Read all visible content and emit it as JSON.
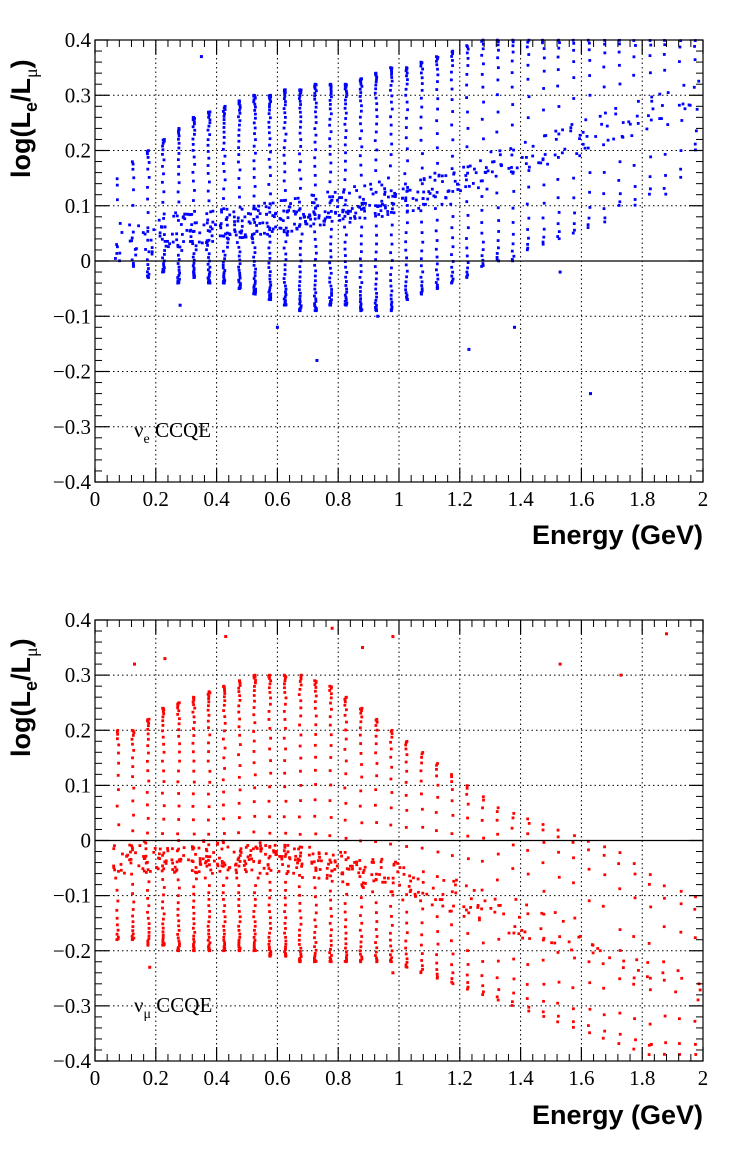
{
  "chart_data": [
    {
      "type": "scatter",
      "panel": "top",
      "xlabel": "Energy (GeV)",
      "ylabel": {
        "main": "log(L",
        "sub1": "e",
        "mid": "/L",
        "sub2": "μ",
        "end": ")"
      },
      "xlim": [
        0,
        2
      ],
      "ylim": [
        -0.4,
        0.4
      ],
      "grid": true,
      "xticks": [
        "0",
        "0.2",
        "0.4",
        "0.6",
        "0.8",
        "1",
        "1.2",
        "1.4",
        "1.6",
        "1.8",
        "2"
      ],
      "yticks": [
        "−0.4",
        "−0.3",
        "−0.2",
        "−0.1",
        "0",
        "0.1",
        "0.2",
        "0.3",
        "0.4"
      ],
      "annotation": {
        "main": "ν",
        "sub": "e",
        "rest": " CCQE"
      },
      "marker_color": "#0000ff",
      "series": [
        {
          "name": "νe CCQE",
          "x": [
            0.075,
            0.125,
            0.175,
            0.225,
            0.275,
            0.325,
            0.375,
            0.425,
            0.475,
            0.525,
            0.575,
            0.625,
            0.675,
            0.725,
            0.775,
            0.825,
            0.875,
            0.925,
            0.975,
            1.025,
            1.075,
            1.125,
            1.175,
            1.225,
            1.275,
            1.325,
            1.375,
            1.425,
            1.475,
            1.525,
            1.575,
            1.625,
            1.675,
            1.725,
            1.775,
            1.825,
            1.875,
            1.925,
            1.975
          ],
          "center": [
            0.04,
            0.045,
            0.045,
            0.05,
            0.055,
            0.058,
            0.06,
            0.065,
            0.068,
            0.07,
            0.075,
            0.08,
            0.085,
            0.09,
            0.095,
            0.1,
            0.105,
            0.11,
            0.115,
            0.12,
            0.125,
            0.13,
            0.14,
            0.15,
            0.16,
            0.17,
            0.18,
            0.19,
            0.2,
            0.21,
            0.22,
            0.23,
            0.24,
            0.25,
            0.26,
            0.27,
            0.28,
            0.29,
            0.3
          ],
          "low": [
            0.0,
            -0.01,
            -0.03,
            -0.02,
            -0.04,
            -0.03,
            -0.04,
            -0.04,
            -0.05,
            -0.06,
            -0.07,
            -0.08,
            -0.09,
            -0.09,
            -0.08,
            -0.08,
            -0.09,
            -0.09,
            -0.09,
            -0.07,
            -0.06,
            -0.05,
            -0.04,
            -0.03,
            -0.01,
            0.0,
            0.0,
            0.02,
            0.03,
            0.04,
            0.05,
            0.06,
            0.07,
            0.1,
            0.1,
            0.12,
            0.12,
            0.15,
            0.2
          ],
          "high": [
            0.15,
            0.18,
            0.2,
            0.22,
            0.24,
            0.26,
            0.27,
            0.28,
            0.29,
            0.3,
            0.3,
            0.31,
            0.31,
            0.32,
            0.32,
            0.32,
            0.33,
            0.34,
            0.35,
            0.35,
            0.36,
            0.37,
            0.38,
            0.39,
            0.4,
            0.4,
            0.4,
            0.4,
            0.4,
            0.4,
            0.4,
            0.4,
            0.4,
            0.4,
            0.4,
            0.4,
            0.4,
            0.4,
            0.4
          ],
          "count": [
            8,
            14,
            22,
            30,
            36,
            40,
            44,
            46,
            48,
            50,
            50,
            50,
            50,
            50,
            48,
            48,
            46,
            44,
            42,
            38,
            34,
            32,
            30,
            26,
            24,
            22,
            20,
            18,
            16,
            16,
            14,
            14,
            12,
            12,
            10,
            10,
            10,
            8,
            8
          ],
          "outliers": [
            [
              0.73,
              -0.18
            ],
            [
              1.63,
              -0.24
            ],
            [
              1.23,
              -0.16
            ],
            [
              0.35,
              0.37
            ],
            [
              0.6,
              -0.12
            ],
            [
              0.93,
              -0.1
            ],
            [
              1.38,
              -0.12
            ],
            [
              0.28,
              -0.08
            ],
            [
              1.53,
              -0.02
            ]
          ]
        }
      ]
    },
    {
      "type": "scatter",
      "panel": "bottom",
      "xlabel": "Energy (GeV)",
      "ylabel": {
        "main": "log(L",
        "sub1": "e",
        "mid": "/L",
        "sub2": "μ",
        "end": ")"
      },
      "xlim": [
        0,
        2
      ],
      "ylim": [
        -0.4,
        0.4
      ],
      "grid": true,
      "xticks": [
        "0",
        "0.2",
        "0.4",
        "0.6",
        "0.8",
        "1",
        "1.2",
        "1.4",
        "1.6",
        "1.8",
        "2"
      ],
      "yticks": [
        "−0.4",
        "−0.3",
        "−0.2",
        "−0.1",
        "0",
        "0.1",
        "0.2",
        "0.3",
        "0.4"
      ],
      "annotation": {
        "main": "ν",
        "sub": "μ",
        "rest": " CCQE"
      },
      "marker_color": "#ff0000",
      "series": [
        {
          "name": "νμ CCQE",
          "x": [
            0.075,
            0.125,
            0.175,
            0.225,
            0.275,
            0.325,
            0.375,
            0.425,
            0.475,
            0.525,
            0.575,
            0.625,
            0.675,
            0.725,
            0.775,
            0.825,
            0.875,
            0.925,
            0.975,
            1.025,
            1.075,
            1.125,
            1.175,
            1.225,
            1.275,
            1.325,
            1.375,
            1.425,
            1.475,
            1.525,
            1.575,
            1.625,
            1.675,
            1.725,
            1.775,
            1.825,
            1.875,
            1.925,
            1.975
          ],
          "center": [
            -0.03,
            -0.03,
            -0.03,
            -0.03,
            -0.03,
            -0.03,
            -0.03,
            -0.03,
            -0.03,
            -0.03,
            -0.035,
            -0.035,
            -0.04,
            -0.04,
            -0.045,
            -0.05,
            -0.055,
            -0.06,
            -0.065,
            -0.07,
            -0.08,
            -0.09,
            -0.1,
            -0.11,
            -0.12,
            -0.13,
            -0.14,
            -0.15,
            -0.16,
            -0.17,
            -0.18,
            -0.19,
            -0.2,
            -0.21,
            -0.22,
            -0.23,
            -0.24,
            -0.25,
            -0.26
          ],
          "low": [
            -0.18,
            -0.18,
            -0.19,
            -0.19,
            -0.2,
            -0.2,
            -0.2,
            -0.2,
            -0.2,
            -0.2,
            -0.21,
            -0.21,
            -0.22,
            -0.22,
            -0.22,
            -0.22,
            -0.22,
            -0.22,
            -0.22,
            -0.23,
            -0.24,
            -0.25,
            -0.26,
            -0.27,
            -0.28,
            -0.29,
            -0.3,
            -0.31,
            -0.32,
            -0.33,
            -0.34,
            -0.35,
            -0.36,
            -0.37,
            -0.38,
            -0.39,
            -0.39,
            -0.39,
            -0.39
          ],
          "high": [
            0.2,
            0.2,
            0.22,
            0.24,
            0.25,
            0.26,
            0.27,
            0.28,
            0.29,
            0.3,
            0.3,
            0.3,
            0.3,
            0.29,
            0.28,
            0.26,
            0.24,
            0.22,
            0.2,
            0.18,
            0.16,
            0.14,
            0.12,
            0.1,
            0.08,
            0.06,
            0.05,
            0.04,
            0.03,
            0.02,
            0.01,
            0.0,
            -0.01,
            -0.02,
            -0.04,
            -0.06,
            -0.08,
            -0.09,
            -0.1
          ],
          "count": [
            24,
            30,
            36,
            40,
            42,
            44,
            46,
            46,
            46,
            46,
            44,
            44,
            42,
            40,
            38,
            36,
            34,
            30,
            28,
            26,
            22,
            20,
            18,
            16,
            14,
            13,
            12,
            12,
            11,
            10,
            10,
            9,
            9,
            8,
            8,
            8,
            7,
            7,
            7
          ],
          "outliers": [
            [
              0.43,
              0.37
            ],
            [
              0.78,
              0.385
            ],
            [
              0.98,
              0.37
            ],
            [
              1.88,
              0.375
            ],
            [
              0.13,
              0.32
            ],
            [
              0.23,
              0.33
            ],
            [
              0.88,
              0.35
            ],
            [
              1.53,
              0.32
            ],
            [
              1.73,
              0.3
            ],
            [
              0.98,
              -0.24
            ],
            [
              1.83,
              -0.37
            ],
            [
              0.18,
              -0.23
            ]
          ]
        }
      ]
    }
  ]
}
